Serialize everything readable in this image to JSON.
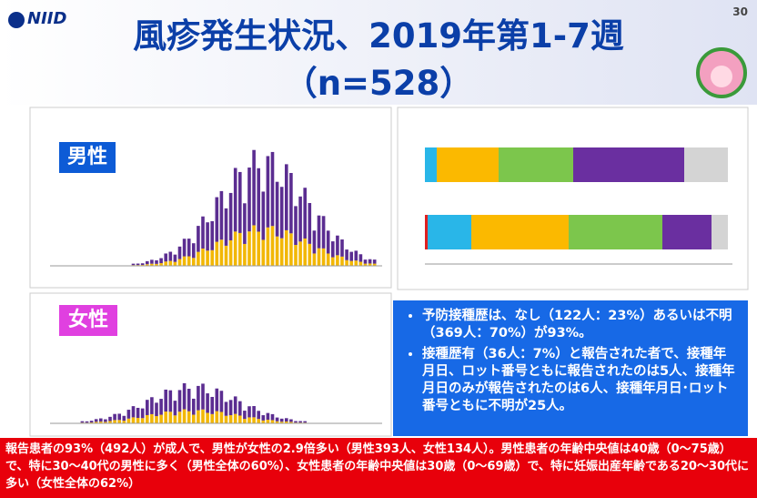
{
  "header": {
    "logo": "NIID",
    "title": "風疹発生状況、2019年第1-7週",
    "subtitle": "（n=528）",
    "page_number": "30"
  },
  "panels": {
    "male_label": "男性",
    "female_label": "女性"
  },
  "bullets": [
    "予防接種歴は、なし（122人：23%）あるいは不明（369人：70%）が93%。",
    "接種歴有（36人：7%）と報告された者で、接種年月日、ロット番号ともに報告されたのは5人、接種年月日のみが報告されたのは6人、接種年月日･ロット番号ともに不明が25人。"
  ],
  "footer": "報告患者の93%（492人）が成人で、男性が女性の2.9倍多い（男性393人、女性134人）。男性患者の年齢中央値は40歳（0～75歳）で、特に30～40代の男性に多く（男性全体の60%）、女性患者の年齢中央値は30歳（0～69歳）で、特に妊娠出産年齢である20～30代に多い（女性全体の62%）"
}
